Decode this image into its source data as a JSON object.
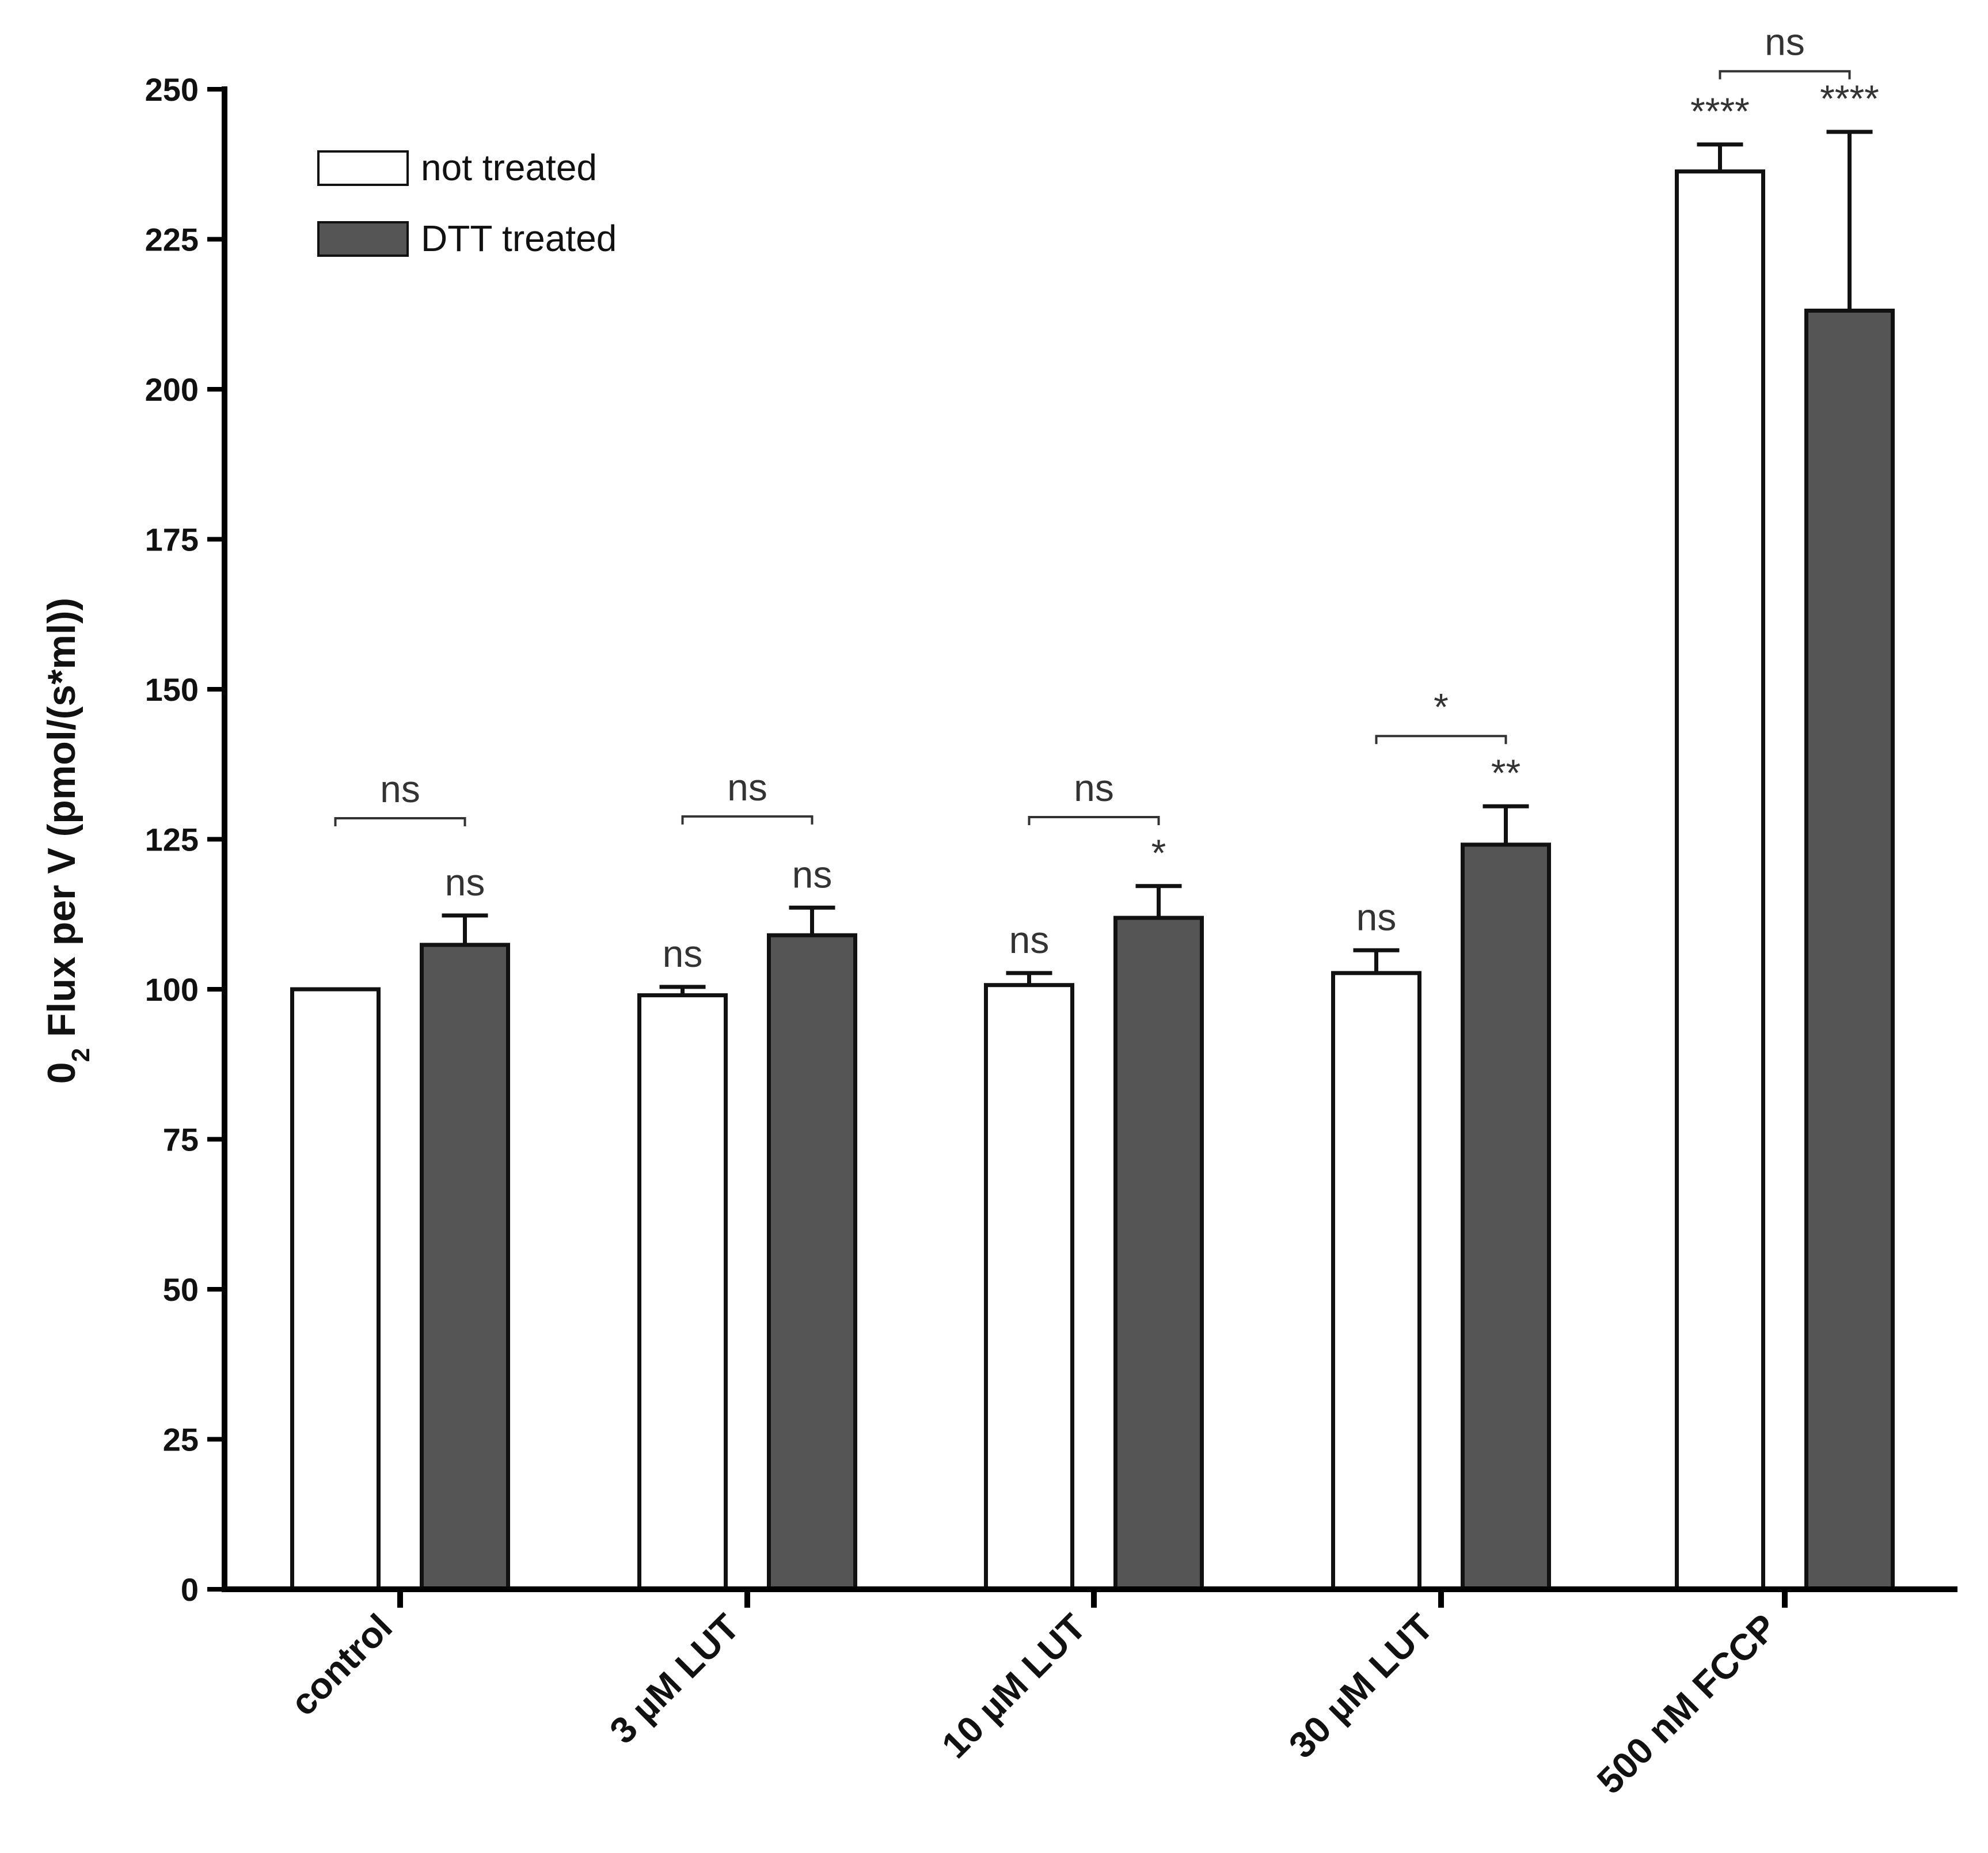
{
  "chart_data": {
    "type": "bar",
    "title": "",
    "xlabel": "",
    "ylabel": "0",
    "ylabel_sub": "2",
    "ylabel_rest": " Flux per V (pmol/(s*ml))",
    "ylim": [
      0,
      250
    ],
    "yticks": [
      0,
      25,
      50,
      75,
      100,
      125,
      150,
      175,
      200,
      225,
      250
    ],
    "categories": [
      "control",
      "3 µM LUT",
      "10 µM LUT",
      "30 µM LUT",
      "500 nM FCCP"
    ],
    "series": [
      {
        "name": "not treated",
        "color": "#ffffff",
        "values": [
          100,
          99,
          100.7,
          102.7,
          236.3
        ],
        "errors": [
          0,
          1.4,
          2.0,
          3.8,
          4.5
        ],
        "significance": [
          "",
          "ns",
          "ns",
          "ns",
          "****"
        ]
      },
      {
        "name": "DTT treated",
        "color": "#555555",
        "values": [
          107.4,
          109.0,
          111.9,
          124.1,
          213.1
        ],
        "errors": [
          4.9,
          4.6,
          5.3,
          6.4,
          29.8
        ],
        "significance": [
          "ns",
          "ns",
          "*",
          "**",
          "****"
        ]
      }
    ],
    "comparisons": [
      "ns",
      "ns",
      "ns",
      "*",
      "ns"
    ],
    "legend": {
      "placement": "top-left",
      "entries": [
        "not treated",
        "DTT treated"
      ]
    }
  }
}
